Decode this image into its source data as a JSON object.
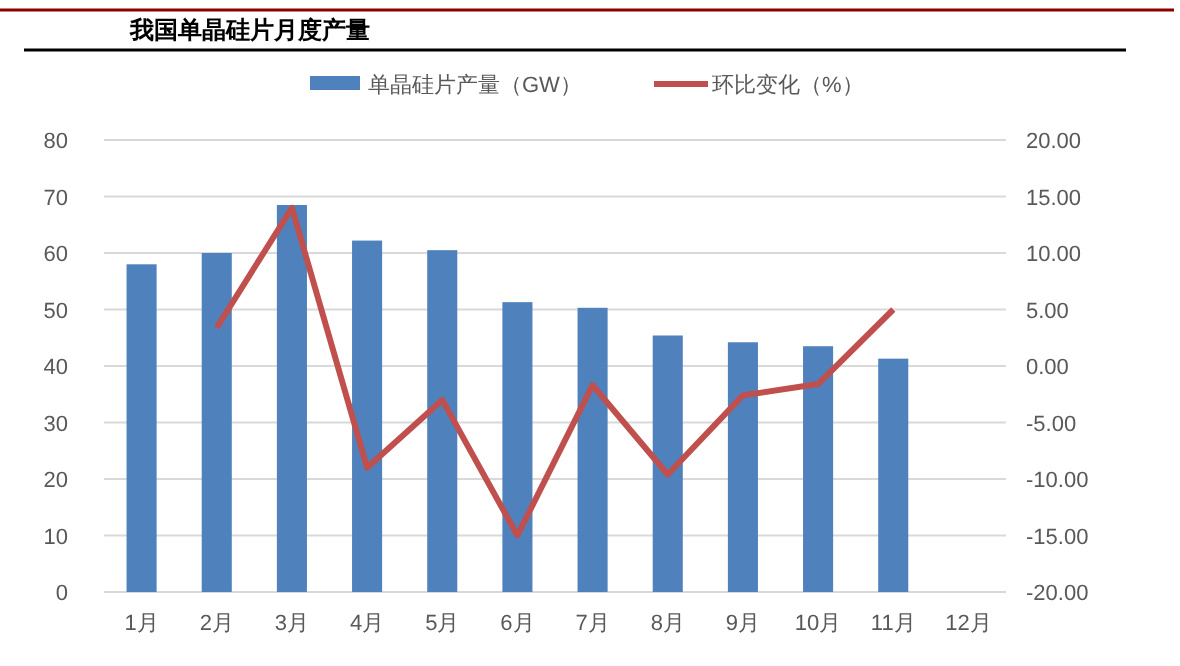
{
  "chart_data": {
    "type": "bar",
    "title": "我国单晶硅片月度产量",
    "categories": [
      "1月",
      "2月",
      "3月",
      "4月",
      "5月",
      "6月",
      "7月",
      "8月",
      "9月",
      "10月",
      "11月",
      "12月"
    ],
    "series": [
      {
        "name": "单晶硅片产量（GW）",
        "color": "#4f81bd",
        "values": [
          58,
          60,
          68.5,
          62.2,
          60.5,
          51.3,
          50.3,
          45.4,
          44.2,
          43.5,
          41.3,
          null
        ]
      },
      {
        "name": "环比变化（%）",
        "type": "line",
        "axis": "y2",
        "color": "#c0504d",
        "values": [
          null,
          3.4,
          14,
          -9,
          -3,
          -15,
          -1.7,
          -9.6,
          -2.6,
          -1.6,
          5,
          null
        ]
      }
    ],
    "ylim": [
      0,
      80
    ],
    "yticks": [
      0,
      10,
      20,
      30,
      40,
      50,
      60,
      70,
      80
    ],
    "y2lim": [
      -20,
      20
    ],
    "y2ticks": [
      {
        "value": -20,
        "label": "-20.00"
      },
      {
        "value": -15,
        "label": "-15.00"
      },
      {
        "value": -10,
        "label": "-10.00"
      },
      {
        "value": -5,
        "label": "-5.00"
      },
      {
        "value": 0,
        "label": "0.00"
      },
      {
        "value": 5,
        "label": "5.00"
      },
      {
        "value": 10,
        "label": "10.00"
      },
      {
        "value": 15,
        "label": "15.00"
      },
      {
        "value": 20,
        "label": "20.00"
      }
    ],
    "grid": "y",
    "legend": "top",
    "marker": "none",
    "line_style": "solid"
  }
}
